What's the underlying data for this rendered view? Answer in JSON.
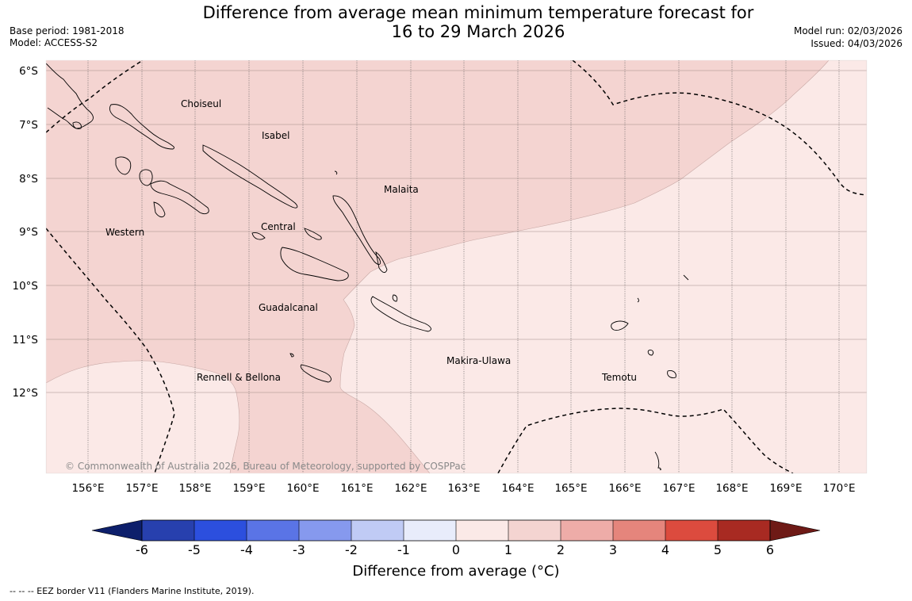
{
  "header": {
    "title_line1": "Difference from average mean minimum temperature forecast for",
    "title_line2": "16 to 29 March 2026",
    "base_period": "Base period: 1981-2018",
    "model": "Model: ACCESS-S2",
    "model_run": "Model run: 02/03/2026",
    "issued": "Issued: 04/03/2026"
  },
  "map": {
    "lat_labels": [
      "6°S",
      "7°S",
      "8°S",
      "9°S",
      "10°S",
      "11°S",
      "12°S"
    ],
    "lon_labels": [
      "156°E",
      "157°E",
      "158°E",
      "159°E",
      "160°E",
      "161°E",
      "162°E",
      "163°E",
      "164°E",
      "165°E",
      "166°E",
      "167°E",
      "168°E",
      "169°E",
      "170°E"
    ],
    "regions": [
      "Choiseul",
      "Isabel",
      "Malaita",
      "Western",
      "Central",
      "Guadalcanal",
      "Makira-Ulawa",
      "Rennell & Bellona",
      "Temotu"
    ],
    "copyright": "© Commonwealth of Australia 2026, Bureau of Meteorology, supported by COSPPac",
    "colors": {
      "anomaly_0_to_1": "#fbe9e7",
      "anomaly_1_to_2": "#f4d4d1",
      "eez_border": "#000000"
    }
  },
  "colorbar": {
    "ticks": [
      "-6",
      "-5",
      "-4",
      "-3",
      "-2",
      "-1",
      "0",
      "1",
      "2",
      "3",
      "4",
      "5",
      "6"
    ],
    "colors": [
      "#0d1f6b",
      "#2740ae",
      "#2c4fde",
      "#5a74e6",
      "#8699ee",
      "#c0cbf5",
      "#e8ecfb",
      "#fbe9e7",
      "#f4d4d1",
      "#eeaca8",
      "#e5857c",
      "#dc4b3e",
      "#a82a22",
      "#6e1a16"
    ],
    "title": "Difference from average (°C)"
  },
  "footnote": "--  --  -- EEZ border V11 (Flanders Marine Institute, 2019)."
}
